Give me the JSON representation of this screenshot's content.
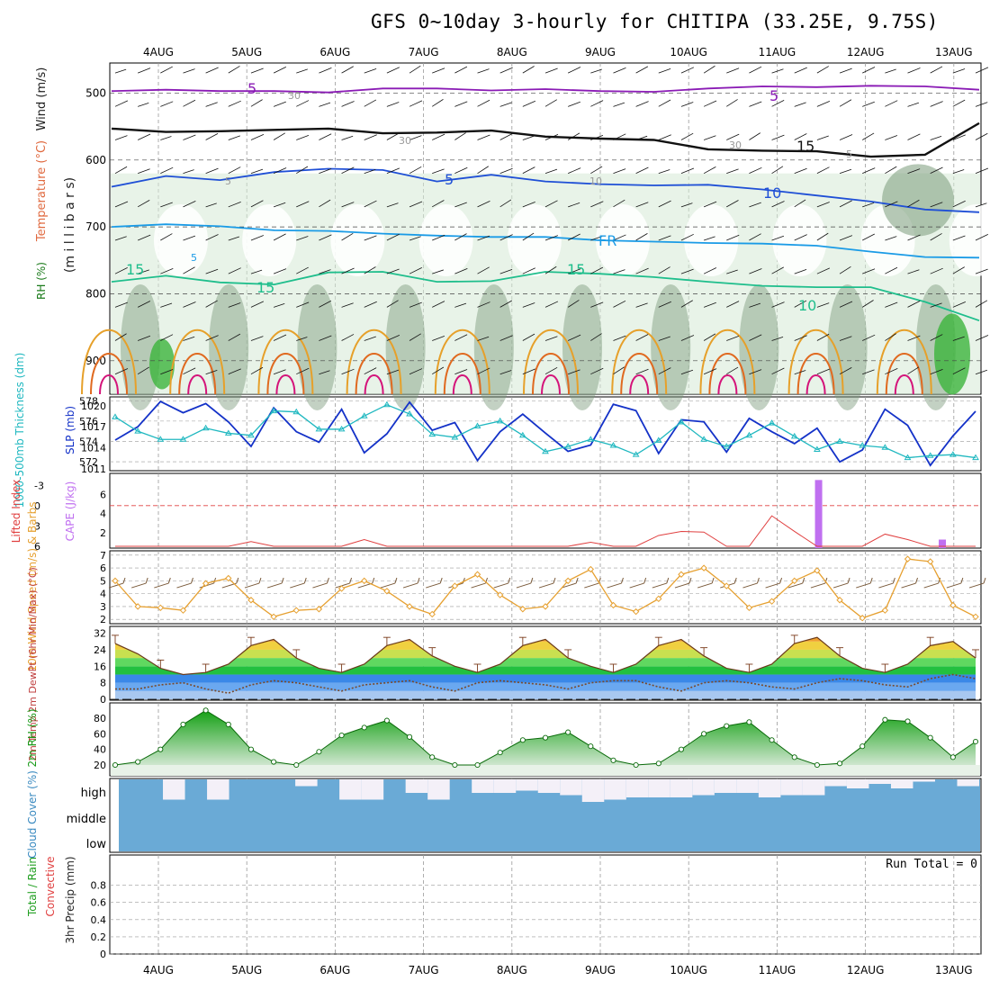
{
  "title": "GFS 0~10day 3-hourly for CHITIPA (33.25E, 9.75S)",
  "colors": {
    "rh_dark": "#7a9a7a",
    "rh_light": "#d6ead6",
    "rh_green": "#3cb43c",
    "t_purple": "#8a1bb5",
    "t_blue": "#1f4fd6",
    "t_lblue": "#1a9be6",
    "t_teal": "#1fbe8c",
    "t_orange": "#e6a02a",
    "t_red": "#e06a20",
    "t_magenta": "#d4147a",
    "slp": "#1432c8",
    "thick": "#20b8c0",
    "cape": "#c070f0",
    "li": "#e04040",
    "wind": "#e6a030",
    "cloud": "#6aaad6",
    "rh2m": "#22bb22",
    "grid": "#9a9a9a"
  },
  "chart_data": [
    {
      "type": "heatmap",
      "name": "upper",
      "ylabel_parts": [
        "RH (%)",
        "Temperature (°C)",
        "Wind (m/s)",
        "(m i l l i b a r s)"
      ],
      "x": [
        "4AUG",
        "5AUG",
        "6AUG",
        "7AUG",
        "8AUG",
        "9AUG",
        "10AUG",
        "11AUG",
        "12AUG",
        "13AUG"
      ],
      "y_ticks": [
        500,
        600,
        700,
        800,
        900
      ],
      "ylim": [
        950,
        455
      ],
      "contour_labels": [
        "5",
        "5",
        "5",
        "10",
        "FR",
        "15",
        "15",
        "15",
        "15",
        "10",
        "5",
        "5",
        "5",
        "10",
        "30",
        "30",
        "30"
      ],
      "isotherms": [
        {
          "label": "-5",
          "level": "500",
          "values": [
            497,
            495,
            497,
            497,
            499,
            493,
            493,
            496,
            494,
            497,
            498,
            493,
            490,
            491,
            489,
            490,
            495
          ]
        },
        {
          "label": "FR",
          "level": "560",
          "values": [
            553,
            558,
            557,
            555,
            553,
            560,
            559,
            556,
            565,
            568,
            570,
            584,
            586,
            587,
            595,
            592,
            545
          ]
        },
        {
          "label": "-5",
          "level": "630",
          "values": [
            640,
            624,
            630,
            618,
            613,
            615,
            632,
            622,
            632,
            636,
            638,
            637,
            644,
            653,
            662,
            674,
            678
          ]
        },
        {
          "label": "10",
          "level": "700",
          "values": [
            700,
            696,
            699,
            705,
            706,
            710,
            713,
            715,
            715,
            720,
            722,
            724,
            725,
            728,
            737,
            745,
            746
          ]
        },
        {
          "label": "15",
          "level": "780",
          "values": [
            782,
            773,
            783,
            786,
            768,
            767,
            782,
            781,
            767,
            770,
            775,
            782,
            788,
            790,
            790,
            812,
            840
          ]
        }
      ]
    },
    {
      "type": "line",
      "name": "slp_thickness",
      "ylabel_left": "1000-500mb Thickness (dm)",
      "ylabel_right": "SLP (mb)",
      "left_ticks": [
        572,
        574,
        576,
        578
      ],
      "right_ticks": [
        1011,
        1014,
        1017,
        1020
      ],
      "series": [
        {
          "name": "SLP (mb)",
          "values": [
            1015.1,
            1017.0,
            1020.6,
            1019.0,
            1020.3,
            1017.7,
            1014.2,
            1019.7,
            1016.3,
            1014.8,
            1019.5,
            1013.3,
            1016.0,
            1020.5,
            1016.5,
            1017.6,
            1012.2,
            1016.3,
            1018.8,
            1016.1,
            1013.5,
            1014.4,
            1020.2,
            1019.3,
            1013.2,
            1018.0,
            1017.7,
            1013.4,
            1018.2,
            1016.3,
            1014.6,
            1016.8,
            1012.0,
            1013.7,
            1019.5,
            1017.2,
            1011.5,
            1015.7,
            1019.2
          ]
        },
        {
          "name": "1000-500mb Thickness (dm)",
          "values": [
            576.4,
            575.0,
            574.2,
            574.2,
            575.3,
            574.8,
            574.6,
            577.0,
            576.9,
            575.2,
            575.2,
            576.5,
            577.6,
            576.7,
            574.7,
            574.4,
            575.5,
            576.0,
            574.6,
            573.0,
            573.5,
            574.2,
            573.6,
            572.7,
            574.1,
            575.9,
            574.2,
            573.5,
            574.6,
            575.8,
            574.5,
            573.2,
            574.0,
            573.6,
            573.4,
            572.4,
            572.6,
            572.7,
            572.4
          ]
        }
      ]
    },
    {
      "type": "bar",
      "name": "li_cape",
      "ylabel_left": "Lifted Index",
      "ylabel_right": "CAPE (J/kg)",
      "left_ticks": [
        "-3",
        "0",
        "3",
        "6"
      ],
      "right_ticks": [
        "2",
        "4",
        "6"
      ],
      "cape_bars": [
        {
          "at": "11AUG",
          "offset": 0.47,
          "value": 7.5
        },
        {
          "at": "12AUG",
          "offset": 0.87,
          "value": 1.3
        }
      ],
      "li_values": [
        6,
        6,
        6,
        6,
        6,
        6,
        5.3,
        6,
        6,
        6,
        6,
        5.0,
        6,
        6,
        6,
        6,
        6,
        6,
        6,
        6,
        6,
        5.4,
        6,
        6,
        4.4,
        3.8,
        3.9,
        6,
        6,
        1.5,
        3.8,
        6,
        6,
        6,
        4.2,
        5.0,
        6,
        6,
        6
      ]
    },
    {
      "type": "line",
      "name": "wind10m",
      "ylabel": "10m Wind Speed (m/s) & Barbs",
      "ticks": [
        2,
        3,
        4,
        5,
        6,
        7
      ],
      "series": [
        {
          "name": "Speed",
          "values": [
            5.0,
            3.0,
            2.9,
            2.7,
            4.8,
            5.2,
            3.5,
            2.2,
            2.7,
            2.8,
            4.4,
            5.0,
            4.2,
            3.0,
            2.4,
            4.6,
            5.5,
            3.9,
            2.8,
            3.0,
            5.0,
            5.9,
            3.1,
            2.6,
            3.6,
            5.5,
            6.0,
            4.6,
            2.9,
            3.4,
            5.0,
            5.8,
            3.5,
            2.1,
            2.7,
            6.7,
            6.5,
            3.1,
            2.2
          ]
        }
      ]
    },
    {
      "type": "area",
      "name": "temp2m",
      "ylabel": "2m Temp 2m DewPt (6hr Min/Max) (°C)",
      "ticks": [
        0,
        8,
        16,
        24,
        32
      ],
      "series": [
        {
          "name": "2m Temp",
          "values": [
            27,
            22,
            15,
            12,
            13,
            17,
            26,
            29,
            20,
            15,
            13,
            17,
            26,
            29,
            21,
            16,
            13,
            17,
            26,
            29,
            20,
            16,
            13,
            17,
            26,
            29,
            21,
            15,
            13,
            17,
            27,
            30,
            21,
            15,
            13,
            17,
            26,
            28,
            20
          ]
        },
        {
          "name": "2m DewPt",
          "values": [
            5,
            5,
            7,
            8,
            5,
            3,
            7,
            9,
            8,
            6,
            4,
            7,
            8,
            9,
            6,
            4,
            8,
            9,
            8,
            7,
            5,
            8,
            9,
            9,
            6,
            4,
            8,
            9,
            8,
            6,
            5,
            8,
            10,
            9,
            7,
            6,
            10,
            12,
            10
          ]
        }
      ]
    },
    {
      "type": "area",
      "name": "rh2m",
      "ylabel": "2m RH (%)",
      "ticks": [
        20,
        40,
        60,
        80
      ],
      "series": [
        {
          "name": "2m RH",
          "values": [
            20,
            24,
            40,
            72,
            90,
            72,
            40,
            24,
            20,
            37,
            58,
            68,
            77,
            56,
            30,
            20,
            20,
            36,
            52,
            55,
            62,
            44,
            26,
            20,
            22,
            40,
            60,
            70,
            75,
            52,
            30,
            20,
            22,
            44,
            78,
            76,
            55,
            30,
            50
          ]
        }
      ]
    },
    {
      "type": "bar",
      "name": "cloud",
      "ylabel": "Cloud Cover (%)",
      "ticks": [
        "high",
        "middle",
        "low"
      ],
      "high_gaps": [
        0,
        0,
        0.9,
        0.0,
        0.9,
        0.0,
        0.0,
        0.0,
        0.3,
        0.0,
        0.9,
        0.9,
        0.0,
        0.6,
        0.9,
        0.0,
        0.6,
        0.6,
        0.5,
        0.6,
        0.7,
        1.0,
        0.9,
        0.8,
        0.8,
        0.8,
        0.7,
        0.6,
        0.6,
        0.8,
        0.7,
        0.7,
        0.3,
        0.4,
        0.2,
        0.4,
        0.1,
        0.0,
        0.3
      ]
    },
    {
      "type": "bar",
      "name": "precip",
      "ylabel": "3hr Precip (mm)",
      "ylabel_parts": [
        "Total / Rain",
        "Convective"
      ],
      "ticks": [
        "0",
        "0.2",
        "0.4",
        "0.6",
        "0.8"
      ],
      "run_total": "Run Total = 0"
    }
  ]
}
